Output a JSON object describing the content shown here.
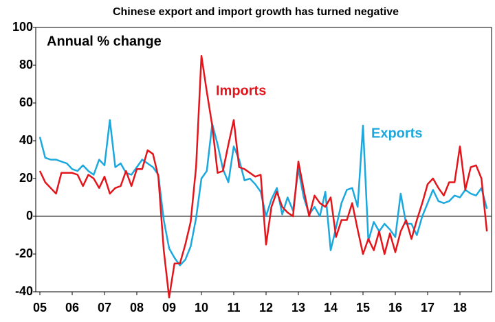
{
  "chart_data": {
    "type": "line",
    "title": "Chinese export and import growth has turned negative",
    "annotations": [
      "Annual % change"
    ],
    "categories": [
      "05",
      null,
      null,
      null,
      null,
      null,
      "06",
      null,
      null,
      null,
      null,
      null,
      "07",
      null,
      null,
      null,
      null,
      null,
      "08",
      null,
      null,
      null,
      null,
      null,
      "09",
      null,
      null,
      null,
      null,
      null,
      "10",
      null,
      null,
      null,
      null,
      null,
      "11",
      null,
      null,
      null,
      null,
      null,
      "12",
      null,
      null,
      null,
      null,
      null,
      "13",
      null,
      null,
      null,
      null,
      null,
      "14",
      null,
      null,
      null,
      null,
      null,
      "15",
      null,
      null,
      null,
      null,
      null,
      "16",
      null,
      null,
      null,
      null,
      null,
      "17",
      null,
      null,
      null,
      null,
      null,
      "18",
      null,
      null,
      null,
      null,
      null
    ],
    "series": [
      {
        "name": "Imports",
        "color": "#e3151b",
        "values": [
          24,
          18,
          15,
          12,
          23,
          23,
          23,
          22,
          16,
          22,
          20,
          15,
          21,
          12,
          15,
          16,
          24,
          16,
          25,
          25,
          35,
          33,
          21,
          -18,
          -43,
          -25,
          -25,
          -15,
          -3,
          26,
          85,
          66,
          48,
          23,
          24,
          38,
          51,
          26,
          25,
          23,
          21,
          22,
          -15,
          5,
          13,
          5,
          2,
          0,
          29,
          14,
          0,
          11,
          7,
          5,
          10,
          -11,
          -2,
          -2,
          7,
          -7,
          -20,
          -12,
          -18,
          -8,
          -20,
          -9,
          -19,
          -8,
          -2,
          -12,
          -2,
          7,
          17,
          20,
          15,
          11,
          18,
          18,
          37,
          14,
          26,
          27,
          20,
          -8
        ]
      },
      {
        "name": "Exports",
        "color": "#1ba8df",
        "values": [
          42,
          31,
          30,
          30,
          29,
          28,
          25,
          24,
          27,
          24,
          22,
          30,
          27,
          51,
          26,
          28,
          23,
          22,
          26,
          30,
          28,
          26,
          22,
          -2,
          -17,
          -22,
          -26,
          -23,
          -16,
          -1,
          20,
          24,
          49,
          38,
          25,
          18,
          37,
          30,
          19,
          20,
          17,
          13,
          0,
          9,
          15,
          1,
          10,
          3,
          25,
          10,
          1,
          5,
          0,
          13,
          -18,
          -6,
          7,
          14,
          15,
          5,
          48,
          -13,
          -3,
          -8,
          -4,
          -7,
          -11,
          12,
          -4,
          -4,
          -10,
          0,
          7,
          14,
          8,
          7,
          8,
          11,
          10,
          14,
          12,
          11,
          15,
          4
        ]
      }
    ],
    "ylim": [
      -40,
      100
    ],
    "yticks": [
      -40,
      -20,
      0,
      20,
      40,
      60,
      80,
      100
    ]
  }
}
